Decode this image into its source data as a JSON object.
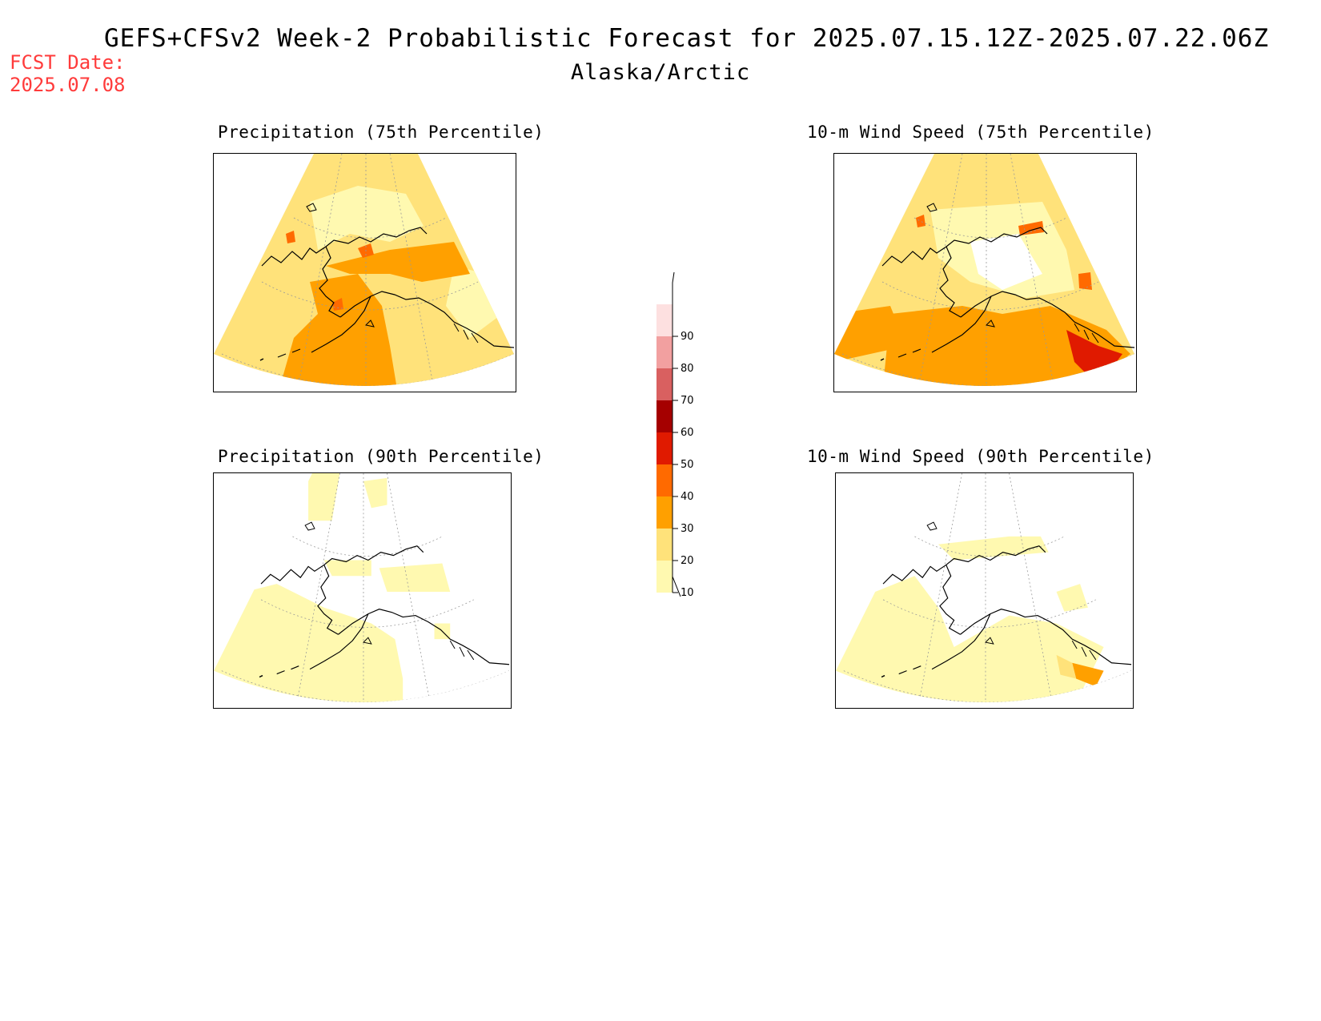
{
  "header": {
    "title": "GEFS+CFSv2 Week-2 Probabilistic Forecast for 2025.07.15.12Z-2025.07.22.06Z",
    "region": "Alaska/Arctic",
    "fcst_date_label": "FCST Date:",
    "fcst_date": "2025.07.08"
  },
  "panels": [
    {
      "title": "Precipitation (75th Percentile)",
      "variable": "precipitation",
      "percentile": 75
    },
    {
      "title": "10-m Wind Speed (75th Percentile)",
      "variable": "wind_speed_10m",
      "percentile": 75
    },
    {
      "title": "Precipitation (90th Percentile)",
      "variable": "precipitation",
      "percentile": 90
    },
    {
      "title": "10-m Wind Speed (90th Percentile)",
      "variable": "wind_speed_10m",
      "percentile": 90
    }
  ],
  "colorbar": {
    "levels": [
      "10",
      "20",
      "30",
      "40",
      "50",
      "60",
      "70",
      "80",
      "90"
    ],
    "colors": [
      "#fff9b0",
      "#ffe27a",
      "#ffa000",
      "#ff6a00",
      "#e01a00",
      "#a50000",
      "#d96060",
      "#f2a0a0",
      "#fde0e0"
    ]
  }
}
